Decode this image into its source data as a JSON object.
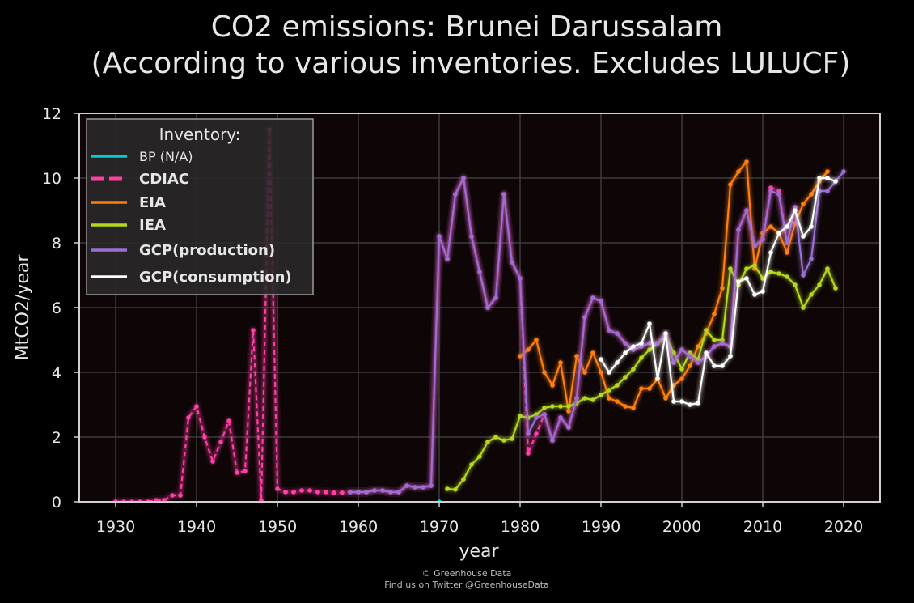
{
  "title_line1": "CO2 emissions: Brunei Darussalam",
  "title_line2": "(According to various inventories. Excludes LULUCF)",
  "footer_line1": "© Greenhouse Data",
  "footer_line2": "Find us on Twitter @GreenhouseData",
  "chart_data": {
    "type": "line",
    "xlabel": "year",
    "ylabel": "MtCO2/year",
    "xlim": [
      1925.5,
      2024.5
    ],
    "ylim": [
      0,
      12
    ],
    "x_ticks": [
      1930,
      1940,
      1950,
      1960,
      1970,
      1980,
      1990,
      2000,
      2010,
      2020
    ],
    "y_ticks": [
      0,
      2,
      4,
      6,
      8,
      10,
      12
    ],
    "grid": true,
    "background": "#0e0606",
    "legend": {
      "title": "Inventory:",
      "placement": "top-left"
    },
    "series": [
      {
        "name": "BP (N/A)",
        "color": "#00d0d0",
        "dash": "solid",
        "glow": false,
        "x": [
          1970
        ],
        "y": [
          0
        ]
      },
      {
        "name": "CDIAC",
        "color": "#ff3fa4",
        "dash": "dashed",
        "glow": true,
        "x": [
          1930,
          1931,
          1932,
          1933,
          1934,
          1935,
          1936,
          1937,
          1938,
          1939,
          1940,
          1941,
          1942,
          1943,
          1944,
          1945,
          1946,
          1947,
          1948,
          1949,
          1950,
          1951,
          1952,
          1953,
          1954,
          1955,
          1956,
          1957,
          1958,
          1959,
          1960,
          1961,
          1962,
          1963,
          1964,
          1965,
          1966,
          1967,
          1968,
          1969,
          1970,
          1971,
          1972,
          1973,
          1974,
          1975,
          1976,
          1977,
          1978,
          1979,
          1980,
          1981,
          1982,
          1983,
          1984,
          1985,
          1986,
          1987,
          1988,
          1989,
          1990,
          1991,
          1992,
          1993,
          1994,
          1995,
          1996,
          1997,
          1998,
          1999,
          2000,
          2001,
          2002,
          2003,
          2004,
          2005,
          2006,
          2007,
          2008,
          2009,
          2010,
          2011,
          2012,
          2013,
          2014
        ],
        "y": [
          0,
          0,
          0,
          0,
          0,
          0.05,
          0.05,
          0.2,
          0.2,
          2.6,
          2.95,
          2.0,
          1.25,
          1.85,
          2.5,
          0.9,
          0.95,
          5.3,
          0.05,
          11.5,
          0.4,
          0.3,
          0.3,
          0.35,
          0.35,
          0.3,
          0.3,
          0.28,
          0.28,
          0.3,
          0.3,
          0.3,
          0.35,
          0.35,
          0.3,
          0.3,
          0.5,
          0.45,
          0.45,
          0.5,
          8.2,
          7.5,
          9.5,
          10.0,
          8.2,
          7.1,
          6.0,
          6.3,
          9.5,
          7.4,
          6.9,
          1.5,
          2.1,
          2.7,
          1.9,
          2.6,
          2.3,
          3.2,
          5.7,
          6.3,
          6.2,
          5.3,
          5.2,
          4.9,
          4.7,
          4.8,
          4.9,
          4.9,
          5.2,
          4.3,
          4.7,
          4.5,
          4.3,
          4.5,
          4.8,
          4.9,
          4.8,
          8.4,
          9.0,
          7.9,
          8.1,
          9.7,
          9.6,
          8.0,
          9.1
        ]
      },
      {
        "name": "EIA",
        "color": "#ff7f0e",
        "dash": "solid",
        "glow": true,
        "x": [
          1980,
          1981,
          1982,
          1983,
          1984,
          1985,
          1986,
          1987,
          1988,
          1989,
          1990,
          1991,
          1992,
          1993,
          1994,
          1995,
          1996,
          1997,
          1998,
          1999,
          2000,
          2001,
          2002,
          2003,
          2004,
          2005,
          2006,
          2007,
          2008,
          2009,
          2010,
          2011,
          2012,
          2013,
          2014,
          2015,
          2016,
          2017,
          2018
        ],
        "y": [
          4.5,
          4.7,
          5.0,
          4.0,
          3.6,
          4.3,
          2.8,
          4.5,
          4.0,
          4.6,
          4.0,
          3.2,
          3.1,
          2.95,
          2.9,
          3.5,
          3.5,
          3.8,
          3.2,
          3.6,
          3.8,
          4.2,
          4.8,
          5.2,
          5.8,
          6.6,
          9.8,
          10.2,
          10.5,
          7.2,
          8.3,
          8.5,
          8.3,
          7.7,
          8.6,
          9.2,
          9.5,
          9.9,
          10.2
        ]
      },
      {
        "name": "IEA",
        "color": "#b5d81f",
        "dash": "solid",
        "glow": true,
        "x": [
          1971,
          1972,
          1973,
          1974,
          1975,
          1976,
          1977,
          1978,
          1979,
          1980,
          1981,
          1982,
          1983,
          1984,
          1985,
          1986,
          1987,
          1988,
          1989,
          1990,
          1991,
          1992,
          1993,
          1994,
          1995,
          1996,
          1997,
          1998,
          1999,
          2000,
          2001,
          2002,
          2003,
          2004,
          2005,
          2006,
          2007,
          2008,
          2009,
          2010,
          2011,
          2012,
          2013,
          2014,
          2015,
          2016,
          2017,
          2018,
          2019
        ],
        "y": [
          0.4,
          0.38,
          0.7,
          1.15,
          1.4,
          1.85,
          2.0,
          1.9,
          1.95,
          2.65,
          2.6,
          2.7,
          2.9,
          2.95,
          2.95,
          2.95,
          3.05,
          3.2,
          3.15,
          3.3,
          3.45,
          3.6,
          3.85,
          4.1,
          4.45,
          4.7,
          4.9,
          5.1,
          4.6,
          4.1,
          4.6,
          4.4,
          5.3,
          5.0,
          5.0,
          7.2,
          6.7,
          7.2,
          7.3,
          6.9,
          7.1,
          7.05,
          6.95,
          6.7,
          6.0,
          6.4,
          6.7,
          7.2,
          6.6
        ]
      },
      {
        "name": "GCP(production)",
        "color": "#9b6fd1",
        "dash": "solid",
        "glow": true,
        "x": [
          1959,
          1960,
          1961,
          1962,
          1963,
          1964,
          1965,
          1966,
          1967,
          1968,
          1969,
          1970,
          1971,
          1972,
          1973,
          1974,
          1975,
          1976,
          1977,
          1978,
          1979,
          1980,
          1981,
          1982,
          1983,
          1984,
          1985,
          1986,
          1987,
          1988,
          1989,
          1990,
          1991,
          1992,
          1993,
          1994,
          1995,
          1996,
          1997,
          1998,
          1999,
          2000,
          2001,
          2002,
          2003,
          2004,
          2005,
          2006,
          2007,
          2008,
          2009,
          2010,
          2011,
          2012,
          2013,
          2014,
          2015,
          2016,
          2017,
          2018,
          2019,
          2020
        ],
        "y": [
          0.3,
          0.3,
          0.3,
          0.35,
          0.35,
          0.3,
          0.3,
          0.5,
          0.45,
          0.45,
          0.5,
          8.2,
          7.5,
          9.5,
          10.0,
          8.2,
          7.1,
          6.0,
          6.3,
          9.5,
          7.4,
          6.9,
          2.1,
          2.6,
          2.7,
          1.9,
          2.6,
          2.3,
          3.2,
          5.7,
          6.3,
          6.2,
          5.3,
          5.2,
          4.9,
          4.7,
          4.8,
          4.9,
          4.9,
          5.2,
          4.3,
          4.7,
          4.5,
          4.3,
          4.5,
          4.8,
          4.9,
          4.8,
          8.4,
          9.0,
          7.9,
          8.1,
          9.6,
          9.5,
          8.0,
          9.1,
          7.0,
          7.5,
          9.6,
          9.6,
          9.9,
          10.2
        ]
      },
      {
        "name": "GCP(consumption)",
        "color": "#ffffff",
        "dash": "solid",
        "glow": true,
        "x": [
          1990,
          1991,
          1992,
          1993,
          1994,
          1995,
          1996,
          1997,
          1998,
          1999,
          2000,
          2001,
          2002,
          2003,
          2004,
          2005,
          2006,
          2007,
          2008,
          2009,
          2010,
          2011,
          2012,
          2013,
          2014,
          2015,
          2016,
          2017,
          2018,
          2019
        ],
        "y": [
          4.4,
          4.0,
          4.3,
          4.6,
          4.8,
          4.9,
          5.5,
          3.8,
          5.2,
          3.1,
          3.1,
          3.0,
          3.05,
          4.6,
          4.2,
          4.2,
          4.5,
          6.8,
          6.9,
          6.4,
          6.5,
          7.7,
          8.3,
          8.5,
          9.0,
          8.2,
          8.5,
          10.0,
          10.0,
          9.9
        ]
      }
    ]
  }
}
